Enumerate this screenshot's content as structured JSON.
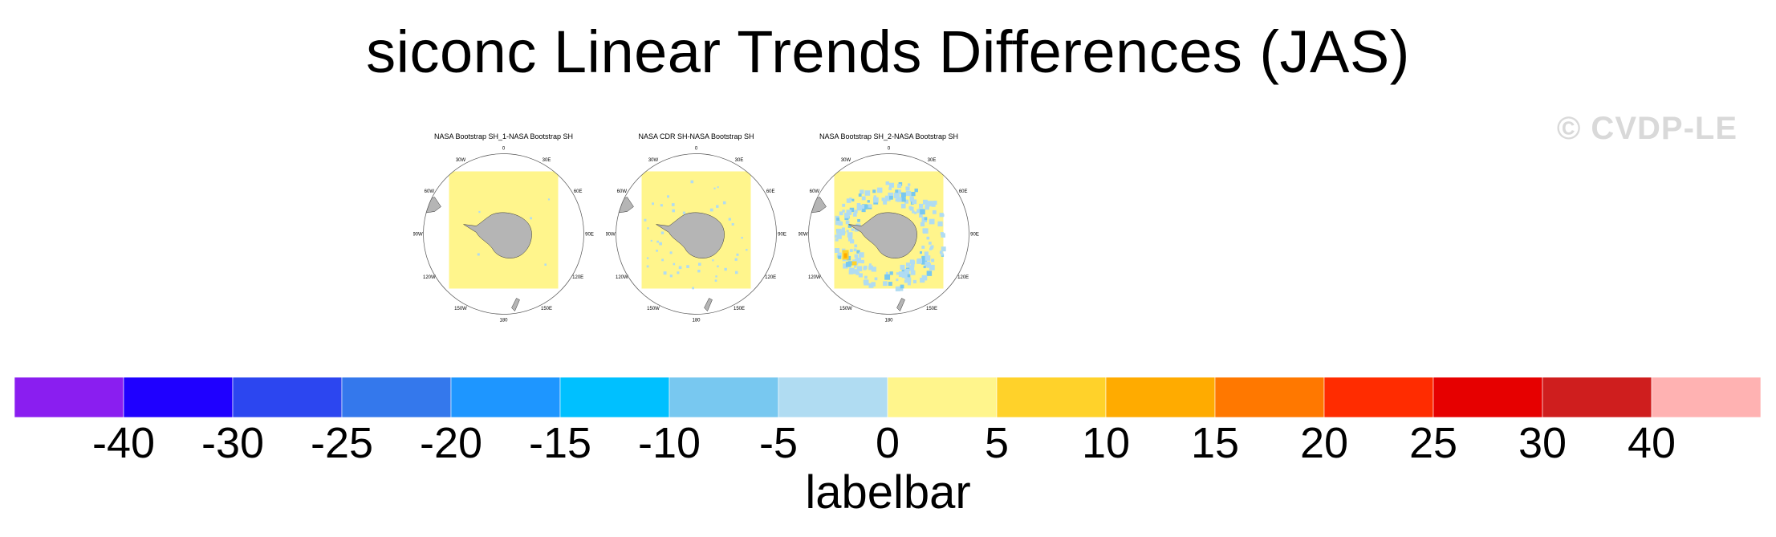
{
  "title": "siconc Linear Trends Differences (JAS)",
  "watermark": "© CVDP-LE",
  "panels": [
    {
      "title": "NASA Bootstrap SH_1-NASA Bootstrap SH",
      "pattern": "sparse"
    },
    {
      "title": "NASA CDR SH-NASA Bootstrap SH",
      "pattern": "light-ring"
    },
    {
      "title": "NASA Bootstrap SH_2-NASA Bootstrap SH",
      "pattern": "strong-ring"
    }
  ],
  "longitude_labels": [
    "0",
    "30E",
    "60E",
    "90E",
    "120E",
    "150E",
    "180",
    "150W",
    "120W",
    "90W",
    "60W",
    "30W"
  ],
  "labelbar": {
    "title": "labelbar",
    "tick_labels": [
      "-40",
      "-30",
      "-25",
      "-20",
      "-15",
      "-10",
      "-5",
      "0",
      "5",
      "10",
      "15",
      "20",
      "25",
      "30",
      "40"
    ],
    "colors": [
      "#8a1ef0",
      "#1f00ff",
      "#2c46f0",
      "#3478ec",
      "#1e96ff",
      "#00c0ff",
      "#78c8f0",
      "#b0dcf2",
      "#fff58c",
      "#ffd22a",
      "#ffab00",
      "#ff7800",
      "#ff2c00",
      "#e60000",
      "#cf1e1e",
      "#ffb2b2"
    ]
  },
  "chart_data": {
    "type": "heatmap",
    "title": "siconc Linear Trends Differences (JAS)",
    "projection": "south-polar-stereographic",
    "panels": [
      "NASA Bootstrap SH_1-NASA Bootstrap SH",
      "NASA CDR SH-NASA Bootstrap SH",
      "NASA Bootstrap SH_2-NASA Bootstrap SH"
    ],
    "colorbar": {
      "label": "labelbar",
      "levels": [
        -40,
        -30,
        -25,
        -20,
        -15,
        -10,
        -5,
        0,
        5,
        10,
        15,
        20,
        25,
        30,
        40
      ],
      "colors": [
        "#8a1ef0",
        "#1f00ff",
        "#2c46f0",
        "#3478ec",
        "#1e96ff",
        "#00c0ff",
        "#78c8f0",
        "#b0dcf2",
        "#fff58c",
        "#ffd22a",
        "#ffab00",
        "#ff7800",
        "#ff2c00",
        "#e60000",
        "#cf1e1e",
        "#ffb2b2"
      ]
    }
  }
}
